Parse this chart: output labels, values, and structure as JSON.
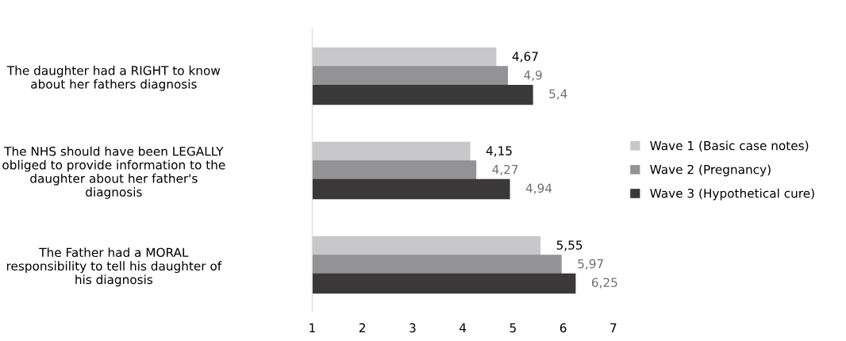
{
  "chart_data": {
    "type": "bar",
    "orientation": "horizontal",
    "categories": [
      "The daughter had a RIGHT to know about her fathers diagnosis",
      "The NHS should have been LEGALLY obliged to provide information to the daughter about her father's diagnosis",
      "The Father had a MORAL responsibility to tell his daughter of his diagnosis"
    ],
    "series": [
      {
        "name": "Wave 1 (Basic case notes)",
        "color": "#c8c8ca",
        "values": [
          4.67,
          4.15,
          5.55
        ],
        "value_labels": [
          "4,67",
          "4,15",
          "5,55"
        ]
      },
      {
        "name": "Wave 2 (Pregnancy)",
        "color": "#939396",
        "values": [
          4.9,
          4.27,
          5.97
        ],
        "value_labels": [
          "4,9",
          "4,27",
          "5,97"
        ]
      },
      {
        "name": "Wave 3 (Hypothetical cure)",
        "color": "#3a3839",
        "values": [
          5.4,
          4.94,
          6.25
        ],
        "value_labels": [
          "5,4",
          "4,94",
          "6,25"
        ]
      }
    ],
    "xlim": [
      1,
      7
    ],
    "xticks": [
      1,
      2,
      3,
      4,
      5,
      6,
      7
    ],
    "grid": false,
    "legend": "right"
  }
}
